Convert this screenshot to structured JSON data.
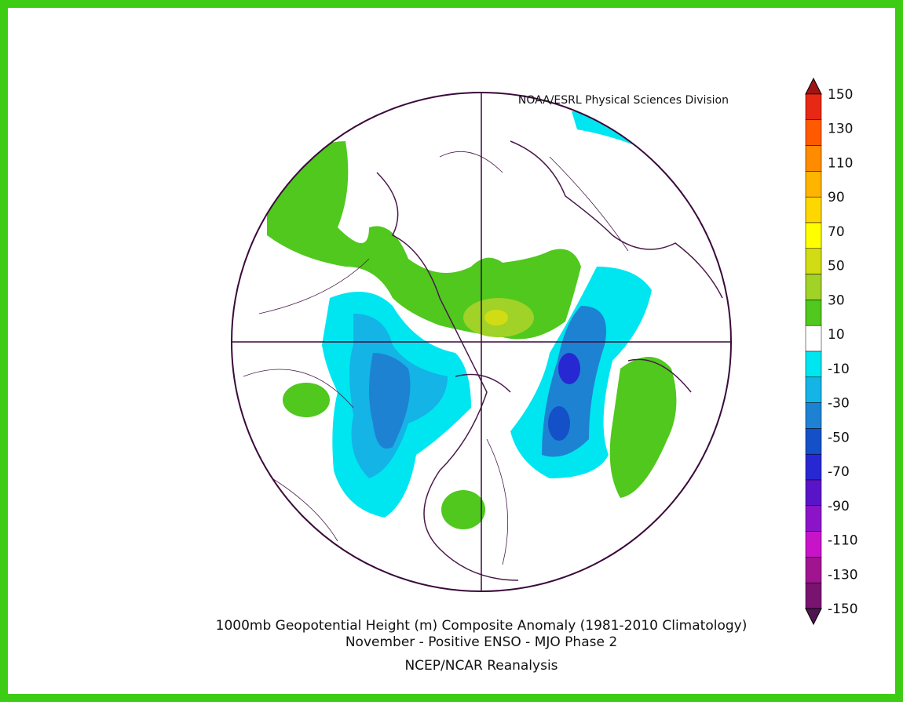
{
  "header": {
    "credit": "NOAA/ESRL Physical Sciences Division"
  },
  "colorbar": {
    "labels": [
      "150",
      "130",
      "110",
      "90",
      "70",
      "50",
      "30",
      "10",
      "-10",
      "-30",
      "-50",
      "-70",
      "-90",
      "-110",
      "-130",
      "-150"
    ],
    "colors": [
      "#a01414",
      "#e62814",
      "#ff5a00",
      "#ff8c00",
      "#ffb400",
      "#ffd700",
      "#ffff00",
      "#d2dc14",
      "#a0d228",
      "#50c81e",
      "#ffffff",
      "#00e6f0",
      "#14b4e6",
      "#1e82d2",
      "#1450c8",
      "#2828d2",
      "#5a14c8",
      "#8c14c8",
      "#c814c8",
      "#a01490",
      "#781470",
      "#501450"
    ]
  },
  "caption": {
    "line1": "1000mb Geopotential Height (m) Composite Anomaly (1981-2010 Climatology)",
    "line2": "November - Positive ENSO - MJO Phase 2",
    "line3": "NCEP/NCAR Reanalysis"
  }
}
